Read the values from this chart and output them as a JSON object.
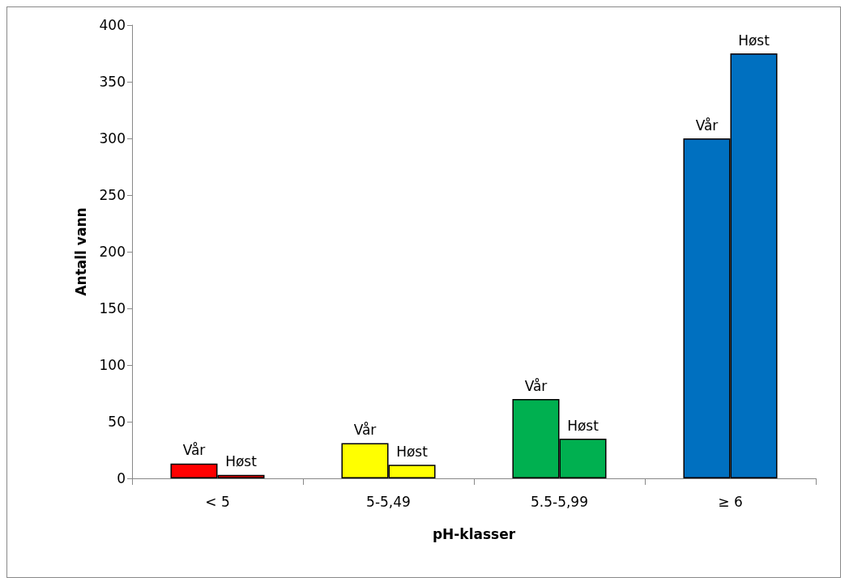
{
  "chart_data": {
    "type": "bar",
    "xlabel": "pH-klasser",
    "ylabel": "Antall vann",
    "categories": [
      "< 5",
      "5-5,49",
      "5.5-5,99",
      "≥ 6"
    ],
    "series": [
      {
        "name": "Vår",
        "colors": [
          "#ff0000",
          "#ffff00",
          "#00b050",
          "#0070c0"
        ],
        "values": [
          13,
          31,
          70,
          300
        ]
      },
      {
        "name": "Høst",
        "colors": [
          "#ff0000",
          "#ffff00",
          "#00b050",
          "#0070c0"
        ],
        "values": [
          3,
          12,
          35,
          375
        ]
      }
    ],
    "ylim": [
      0,
      400
    ],
    "yticks": [
      0,
      50,
      100,
      150,
      200,
      250,
      300,
      350,
      400
    ],
    "grid": false,
    "legend": false
  }
}
